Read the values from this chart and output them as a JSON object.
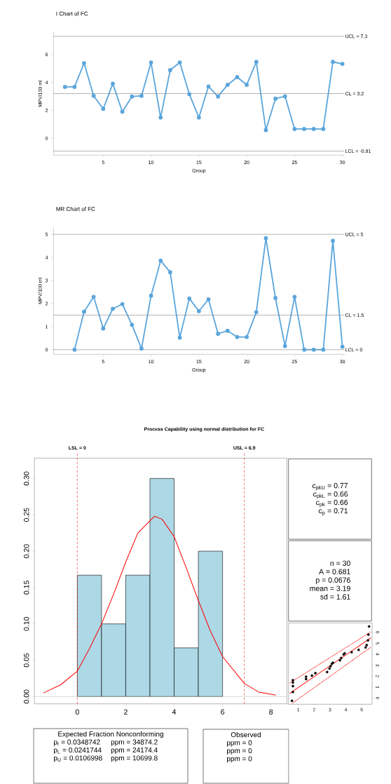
{
  "chart_data": [
    {
      "type": "line",
      "title": "I Chart of FC",
      "xlabel": "Group",
      "ylabel": "MPV/100 ml",
      "marker": "circle",
      "x": [
        1,
        2,
        3,
        4,
        5,
        6,
        7,
        8,
        9,
        10,
        11,
        12,
        13,
        14,
        15,
        16,
        17,
        18,
        19,
        20,
        21,
        22,
        23,
        24,
        25,
        26,
        27,
        28,
        29,
        30
      ],
      "series": [
        {
          "color": "#5aa5dc",
          "values": [
            3.68,
            3.68,
            5.38,
            3.04,
            2.11,
            3.91,
            1.91,
            2.99,
            3.04,
            5.43,
            1.49,
            4.88,
            5.43,
            3.16,
            1.49,
            3.71,
            2.99,
            3.83,
            4.38,
            3.83,
            5.47,
            0.59,
            2.84,
            3.01,
            0.67,
            0.67,
            0.67,
            0.67,
            5.47,
            5.33
          ]
        }
      ],
      "xlim": [
        -0.2,
        30.2
      ],
      "ylim": [
        -1.2,
        7.6
      ],
      "xticks": [
        5,
        10,
        15,
        20,
        25,
        30
      ],
      "yticks": [
        0,
        2,
        4,
        6
      ],
      "ref_lines": [
        {
          "axis": "y",
          "value": 7.3,
          "label": "UCL = 7.3",
          "color": "#808080"
        },
        {
          "axis": "y",
          "value": 3.2,
          "label": "CL = 3.2",
          "color": "#808080"
        },
        {
          "axis": "y",
          "value": -0.91,
          "label": "LCL = -0.91",
          "color": "#808080"
        }
      ]
    },
    {
      "type": "line",
      "title": "MR Chart of FC",
      "xlabel": "Group",
      "ylabel": "MPV/100 ml",
      "marker": "circle",
      "x": [
        2,
        3,
        4,
        5,
        6,
        7,
        8,
        9,
        10,
        11,
        12,
        13,
        14,
        15,
        16,
        17,
        18,
        19,
        20,
        21,
        22,
        23,
        24,
        25,
        26,
        27,
        28,
        29,
        30
      ],
      "series": [
        {
          "color": "#5aa5dc",
          "values": [
            0,
            1.65,
            2.29,
            0.92,
            1.77,
            1.98,
            1.08,
            0.05,
            2.34,
            3.86,
            3.36,
            0.52,
            2.22,
            1.67,
            2.18,
            0.69,
            0.82,
            0.55,
            0.55,
            1.63,
            4.83,
            2.24,
            0.16,
            2.29,
            0,
            0,
            0,
            4.72,
            0.13
          ]
        }
      ],
      "xlim": [
        -0.2,
        30.2
      ],
      "ylim": [
        -0.2,
        5.3
      ],
      "xticks": [
        5,
        10,
        15,
        20,
        25,
        30
      ],
      "yticks": [
        0,
        1,
        2,
        3,
        4,
        5
      ],
      "ref_lines": [
        {
          "axis": "y",
          "value": 5,
          "label": "UCL = 5",
          "color": "#808080"
        },
        {
          "axis": "y",
          "value": 1.5,
          "label": "CL = 1.5",
          "color": "#808080"
        },
        {
          "axis": "y",
          "value": 0,
          "label": "LCL = 0",
          "color": "#808080"
        }
      ]
    },
    {
      "type": "histogram",
      "title": "Process Capability using normal distribution for FC",
      "bins": [
        0,
        1,
        2,
        3,
        4,
        5,
        6
      ],
      "series": [
        {
          "type": "histogram",
          "color": "#add8e6",
          "values": [
            0.167,
            0.1,
            0.167,
            0.3,
            0.067,
            0.2
          ]
        },
        {
          "type": "line",
          "color": "#ff0000",
          "x": [
            -1.4,
            -0.7,
            0,
            0.5,
            1,
            1.5,
            2,
            2.5,
            3.19,
            3.5,
            4,
            4.5,
            5,
            5.5,
            6,
            6.9,
            7.5,
            8.2
          ],
          "values": [
            0.005,
            0.016,
            0.035,
            0.066,
            0.1,
            0.141,
            0.185,
            0.225,
            0.248,
            0.244,
            0.22,
            0.177,
            0.132,
            0.09,
            0.055,
            0.018,
            0.006,
            0.002
          ]
        }
      ],
      "xlim": [
        -1.77,
        8.66
      ],
      "ylim": [
        -0.01,
        0.328
      ],
      "xticks": [
        0,
        2,
        4,
        6,
        8
      ],
      "yticks": [
        {
          "value": 0,
          "label": "0.00"
        },
        {
          "value": 0.05,
          "label": "0.05"
        },
        {
          "value": 0.1,
          "label": "0.10"
        },
        {
          "value": 0.15,
          "label": "0.15"
        },
        {
          "value": 0.2,
          "label": "0.20"
        },
        {
          "value": 0.25,
          "label": "0.25"
        },
        {
          "value": 0.3,
          "label": "0.30"
        }
      ],
      "ref_lines": [
        {
          "axis": "x",
          "value": 0,
          "label": "LSL = 0",
          "color": "#ff0000",
          "line_style": "dashed"
        },
        {
          "axis": "x",
          "value": 6.9,
          "label": "USL = 6.9",
          "color": "#ff0000",
          "line_style": "dashed"
        },
        {
          "axis": "y",
          "value": 0,
          "color": "#bebebe"
        }
      ]
    },
    {
      "type": "other",
      "annotations": [
        "c$_{pkU}$ = 0.77",
        "c$_{pkL}$ = 0.66",
        "c$_{pk}$ = 0.66",
        "c$_{p}$ = 0.71"
      ]
    },
    {
      "type": "other",
      "annotations": [
        "n = 30",
        "A = 0.681",
        "p = 0.0676",
        "mean = 3.19",
        "sd = 1.61"
      ]
    },
    {
      "type": "scatter",
      "marker": "circle",
      "series": [
        {
          "type": "scatter",
          "color": "#000000",
          "x": [
            0.6,
            0.66,
            0.66,
            0.66,
            0.66,
            1.49,
            1.49,
            1.86,
            2.08,
            2.82,
            2.97,
            3.04,
            3.12,
            3.19,
            3.63,
            3.71,
            3.86,
            3.93,
            4.37,
            4.81,
            5.25,
            5.32,
            5.4,
            5.43,
            5.47
          ],
          "values": [
            -0.23,
            0.57,
            1.1,
            1.43,
            1.64,
            1.74,
            1.96,
            2.06,
            2.28,
            2.38,
            2.7,
            2.91,
            3.13,
            3.23,
            3.45,
            3.66,
            3.98,
            4.09,
            4.19,
            4.4,
            4.62,
            4.83,
            5.26,
            5.79,
            6.53
          ]
        },
        {
          "type": "line",
          "color": "#ff0000",
          "marker": "none",
          "x": [
            0.45,
            5.6
          ],
          "values": [
            0.43,
            5.51
          ]
        },
        {
          "type": "line",
          "color": "#ff0000",
          "marker": "none",
          "line_style": "dotted",
          "x": [
            0.45,
            5.6
          ],
          "values": [
            1.38,
            6.05
          ]
        },
        {
          "type": "line",
          "color": "#ff0000",
          "marker": "none",
          "line_style": "dotted",
          "x": [
            0.6,
            5.6
          ],
          "values": [
            -0.48,
            4.66
          ]
        }
      ],
      "xlim": [
        0.38,
        5.66
      ],
      "ylim": [
        -0.55,
        6.85
      ],
      "xticks": [
        1,
        2,
        3,
        4,
        5
      ],
      "yticks": [
        0,
        1,
        2,
        3,
        4,
        5,
        6
      ]
    },
    {
      "type": "other",
      "title": "Expected Fraction Nonconforming",
      "annotations": [
        "p$_{t}$ = 0.0348742",
        "ppm = 34874.2",
        "p$_{L}$ = 0.0241744",
        "ppm = 24174.4",
        "p$_{U}$ = 0.0106998",
        "ppm = 10699.8"
      ]
    },
    {
      "type": "other",
      "title": "Observed",
      "annotations": [
        "ppm = 0",
        "ppm = 0",
        "ppm = 0"
      ]
    }
  ]
}
